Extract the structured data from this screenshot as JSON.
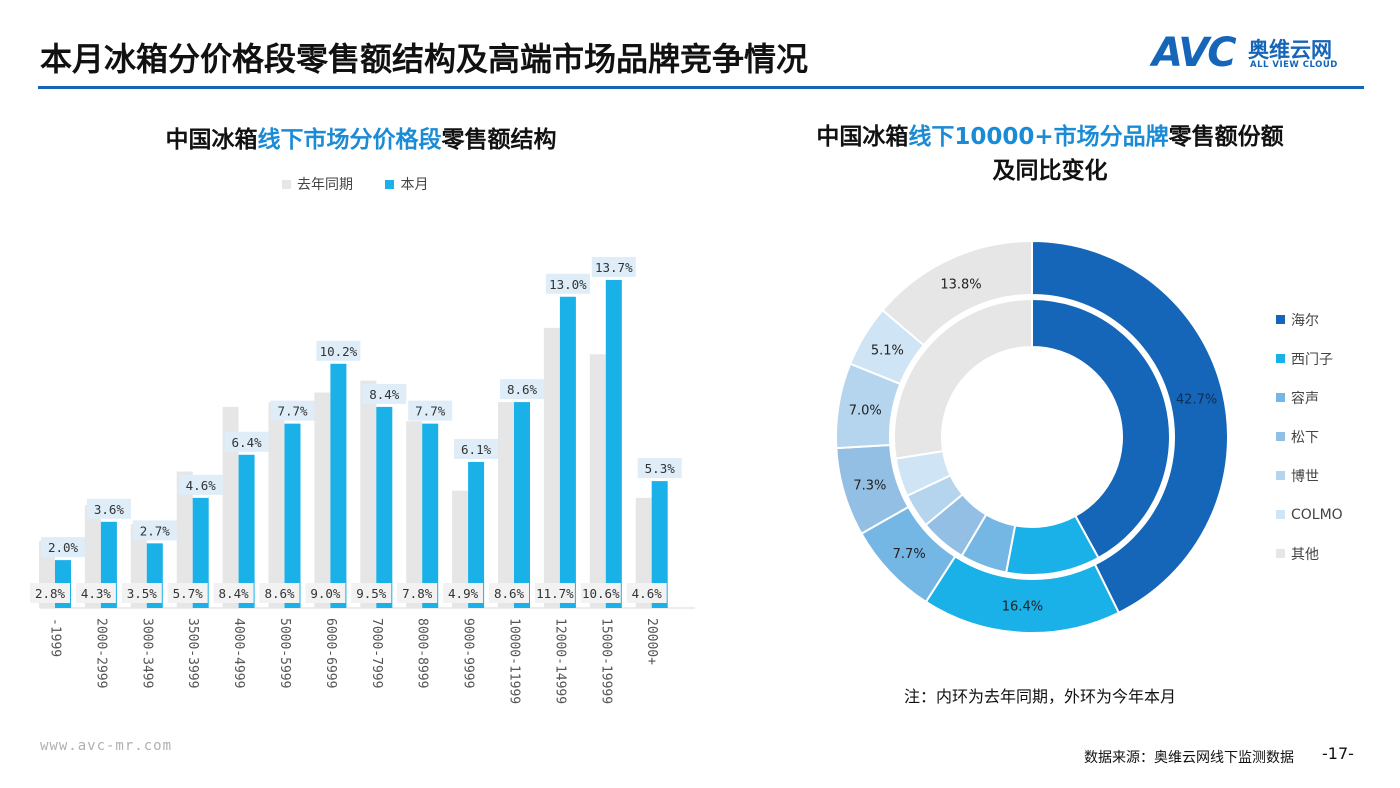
{
  "header": {
    "title": "本月冰箱分价格段零售额结构及高端市场品牌竞争情况",
    "logo_avc": "AVC",
    "logo_cn": "奥维云网",
    "logo_en": "ALL VIEW CLOUD",
    "accent_color": "#1565b8"
  },
  "left_chart": {
    "title_pre": "中国冰箱",
    "title_hl": "线下市场分价格段",
    "title_post": "零售额结构"
  },
  "right_chart": {
    "title_pre": "中国冰箱",
    "title_hl": "线下10000+市场分品牌",
    "title_post": "零售额份额",
    "title_line2": "及同比变化",
    "note": "注：内环为去年同期，外环为今年本月"
  },
  "chart_data": [
    {
      "type": "bar",
      "categories": [
        "-1999",
        "2000-2999",
        "3000-3499",
        "3500-3999",
        "4000-4999",
        "5000-5999",
        "6000-6999",
        "7000-7999",
        "8000-8999",
        "9000-9999",
        "10000-11999",
        "12000-14999",
        "15000-19999",
        "20000+"
      ],
      "series": [
        {
          "name": "去年同期",
          "color": "#e6e6e6",
          "values": [
            2.8,
            4.3,
            3.5,
            5.7,
            8.4,
            8.6,
            9.0,
            9.5,
            7.8,
            4.9,
            8.6,
            11.7,
            10.6,
            4.6
          ],
          "labels": [
            "2.8%",
            "4.3%",
            "3.5%",
            "5.7%",
            "8.4%",
            "8.6%",
            "9.0%",
            "9.5%",
            "7.8%",
            "4.9%",
            "8.6%",
            "11.7%",
            "10.6%",
            "4.6%"
          ]
        },
        {
          "name": "本月",
          "color": "#1ab0e8",
          "values": [
            2.0,
            3.6,
            2.7,
            4.6,
            6.4,
            7.7,
            10.2,
            8.4,
            7.7,
            6.1,
            8.6,
            13.0,
            13.7,
            5.3
          ],
          "labels": [
            "2.0%",
            "3.6%",
            "2.7%",
            "4.6%",
            "6.4%",
            "7.7%",
            "10.2%",
            "8.4%",
            "7.7%",
            "6.1%",
            "8.6%",
            "13.0%",
            "13.7%",
            "5.3%"
          ]
        }
      ],
      "ylim": [
        0,
        14.5
      ]
    },
    {
      "type": "pie",
      "categories": [
        "海尔",
        "西门子",
        "容声",
        "松下",
        "博世",
        "COLMO",
        "其他"
      ],
      "colors": [
        "#1565b8",
        "#1ab0e8",
        "#74b6e4",
        "#94bfe4",
        "#b5d4ee",
        "#cfe4f5",
        "#e6e6e6"
      ],
      "outer_values": [
        42.7,
        16.4,
        7.7,
        7.3,
        7.0,
        5.1,
        13.8
      ],
      "outer_labels": [
        "42.7%",
        "16.4%",
        "7.7%",
        "7.3%",
        "7.0%",
        "5.1%",
        "13.8%"
      ],
      "inner_values": [
        42.0,
        11.0,
        5.5,
        5.5,
        4.0,
        4.5,
        27.5
      ]
    }
  ],
  "footer": {
    "url": "www.avc-mr.com",
    "source": "数据来源：奥维云网线下监测数据",
    "page": "-17-"
  }
}
